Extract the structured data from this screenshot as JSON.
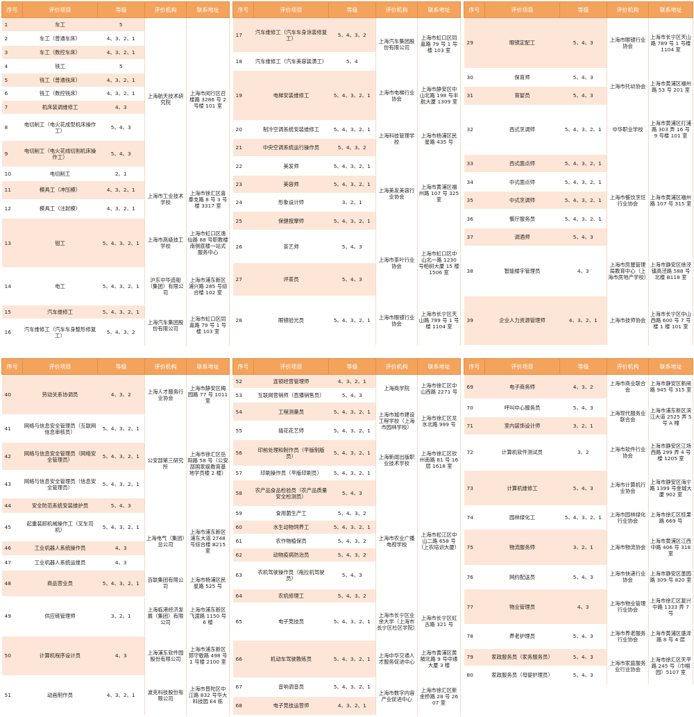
{
  "headers": [
    "序号",
    "评价项目",
    "等级",
    "评价机构",
    "联系地址"
  ],
  "panels": [
    {
      "rows": [
        {
          "no": "1",
          "item": "车工",
          "level": "5",
          "org": "上海航天技术研究院",
          "orgSpan": 10,
          "addr": "上海市闵行区召楼路 3286 号 2 号楼 101 室",
          "addrSpan": 10
        },
        {
          "no": "2",
          "item": "车工（普通车床）",
          "level": "4、3、2、1"
        },
        {
          "no": "3",
          "item": "车工（数控车床）",
          "level": "4、3、2、1"
        },
        {
          "no": "4",
          "item": "铣工",
          "level": "5"
        },
        {
          "no": "5",
          "item": "铣工（普通铣床）",
          "level": "4、3、2、1"
        },
        {
          "no": "6",
          "item": "铣工（数控铣床）",
          "level": "4、3、2、1"
        },
        {
          "no": "7",
          "item": "机床装调维修工",
          "level": "4、3"
        },
        {
          "no": "8",
          "item": "电切削工（电火花成型机床操作工）",
          "level": "5、4、3"
        },
        {
          "no": "9",
          "item": "电切削工（电火花线切割机床操作工）",
          "level": "5、4、3"
        },
        {
          "no": "10",
          "item": "电切削工",
          "level": "2、1"
        },
        {
          "no": "11",
          "item": "模具工（冲压模）",
          "level": "4、3、2、1",
          "org": "上海市工业技术学校",
          "orgSpan": 2,
          "addr": "上海市徐汇区喜泰支路 8 号 3 号楼 3317 室",
          "addrSpan": 2
        },
        {
          "no": "12",
          "item": "模具工（注射模）",
          "level": "4、3、2、1"
        },
        {
          "no": "13",
          "item": "钳工",
          "level": "5、4、3、2、1",
          "org": "上海市高级技工学校",
          "orgSpan": 1,
          "addr": "上海市虹口区逸仙路 88 号职教楼南侧底楼一站式服务中心",
          "addrSpan": 1
        },
        {
          "no": "14",
          "item": "电工",
          "level": "5、4、3、2、1",
          "org": "沪东中华造船（集团）有限公司",
          "orgSpan": 1,
          "addr": "上海市浦东新区浦兴路 285 号综合楼 102 室",
          "addrSpan": 1
        },
        {
          "no": "15",
          "item": "汽车维修工",
          "level": "5、4、3、2、1",
          "org": "上海汽车集团股份有限公司",
          "orgSpan": 2,
          "addr": "上海市虹口区同嘉路 79 号 1 号楼 103 室",
          "addrSpan": 2
        },
        {
          "no": "16",
          "item": "汽车维修工（汽车车身整形修复工）",
          "level": "5、4、3、2"
        }
      ]
    },
    {
      "rows": [
        {
          "no": "17",
          "item": "汽车维修工（汽车车身涂装修复工）",
          "level": "5、4、3、2",
          "org": "上海汽车集团股份有限公司",
          "orgSpan": 2,
          "addr": "上海市虹口区同嘉路 79 号 1 号楼 103 室",
          "addrSpan": 2
        },
        {
          "no": "18",
          "item": "汽车维修工（汽车美容装潢工）",
          "level": "5、4"
        },
        {
          "no": "19",
          "item": "电梯安装维修工",
          "level": "5、4、3、2、1",
          "org": "上海市电梯行业协会",
          "orgSpan": 1,
          "addr": "上海市静安区中山北路 198 号半航大厦 1309 室",
          "addrSpan": 1
        },
        {
          "no": "20",
          "item": "制冷空调系统安装维修工",
          "level": "5、4、3、2、1",
          "org": "上海科技管理学校",
          "orgSpan": 2,
          "addr": "上海市杨浦区民星路 435 号",
          "addrSpan": 2
        },
        {
          "no": "21",
          "item": "中央空调系统运行操作员",
          "level": "5、4、3、2"
        },
        {
          "no": "22",
          "item": "美发师",
          "level": "5、4、3、2、1",
          "org": "上海美发美容行业协会",
          "orgSpan": 4,
          "addr": "上海市黄浦区福州路 107 号 325 室",
          "addrSpan": 4
        },
        {
          "no": "23",
          "item": "美容师",
          "level": "5、4、3、2、1"
        },
        {
          "no": "24",
          "item": "形象设计师",
          "level": "3、2、1"
        },
        {
          "no": "25",
          "item": "保健按摩师",
          "level": "5、4、3、2、1"
        },
        {
          "no": "26",
          "item": "茶艺师",
          "level": "5、4、3",
          "org": "上海市茶叶行业协会",
          "orgSpan": 2,
          "addr": "上海市虹口区中山北一路 1230 号柏树大厦 15 楼 1506 室",
          "addrSpan": 2
        },
        {
          "no": "27",
          "item": "评茶员",
          "level": "5、4、3"
        },
        {
          "no": "28",
          "item": "眼镜验光员",
          "level": "5、4、3、2、1",
          "org": "上海市眼镜行业协会",
          "orgSpan": 1,
          "addr": "上海市长宁区天山路 789 号 1 号楼 1104 室",
          "addrSpan": 1
        }
      ]
    },
    {
      "rows": [
        {
          "no": "29",
          "item": "眼镜定配工",
          "level": "5、4、3",
          "org": "上海市眼镜行业协会",
          "orgSpan": 1,
          "addr": "上海市长宁区天山路 789 号 1 号楼 1104 室",
          "addrSpan": 1
        },
        {
          "no": "30",
          "item": "保育师",
          "level": "5、4、3",
          "org": "上海市托幼协会",
          "orgSpan": 2,
          "addr": "上海市黄浦区福州路 53 号 201 室",
          "addrSpan": 2
        },
        {
          "no": "31",
          "item": "育婴员",
          "level": "5、4、3"
        },
        {
          "no": "32",
          "item": "西式烹调师",
          "level": "5、4、3、2、1",
          "org": "中华职业学校",
          "orgSpan": 1,
          "addr": "上海市黄浦区打浦路 303 弄 16 号 9 号楼 101 室",
          "addrSpan": 1
        },
        {
          "no": "33",
          "item": "西式面点师",
          "level": "5、4、3、2、1",
          "org": "上海市餐饮烹饪行业协会",
          "orgSpan": 5,
          "addr": "上海市黄浦区福州路 107 号 315 室",
          "addrSpan": 5
        },
        {
          "no": "34",
          "item": "中式面点师",
          "level": "5、4、3、2、1"
        },
        {
          "no": "35",
          "item": "中式烹调师",
          "level": "5、4、3、2、1"
        },
        {
          "no": "36",
          "item": "餐厅服务员",
          "level": "5、4、3、2、1"
        },
        {
          "no": "37",
          "item": "调酒师",
          "level": "5、4、3"
        },
        {
          "no": "38",
          "item": "智能楼宇管理员",
          "level": "4、3",
          "org": "上海市房屋管理局教育中心（上海市房地产学校）",
          "orgSpan": 1,
          "addr": "上海市静安区徐泾镇高泾路 588 号北楼 B118 室",
          "addrSpan": 1
        },
        {
          "no": "39",
          "item": "企业人力资源管理师",
          "level": "4、3、2、1",
          "org": "上海市技师协会",
          "orgSpan": 1,
          "addr": "上海市长宁区中山西路 600 号 7 号楼 1 楼 101 室",
          "addrSpan": 1
        }
      ]
    },
    {
      "rows": [
        {
          "no": "40",
          "item": "劳动关系协调员",
          "level": "4、3、2",
          "org": "上海人才服务行业协会",
          "orgSpan": 1,
          "addr": "上海市静安区梅园路 77 号 1011 室",
          "addrSpan": 1
        },
        {
          "no": "41",
          "item": "网络与信息安全管理员（互联网信息审核员）",
          "level": "5、4、3、2、1",
          "org": "公安部第三研究所",
          "orgSpan": 4,
          "addr": "上海市徐汇区岳阳路 58 号（公安部国家级教育基地学员楼 2 楼）",
          "addrSpan": 4
        },
        {
          "no": "42",
          "item": "网络与信息安全管理员（网络安全管理员）",
          "level": "5、4、3、2、1"
        },
        {
          "no": "43",
          "item": "网络与信息安全管理员（信息安全管理员）",
          "level": "5、4、3、2、1"
        },
        {
          "no": "44",
          "item": "安全防范系统安装维护员",
          "level": "5、4、3"
        },
        {
          "no": "45",
          "item": "起重装卸机械操作工（叉车司机）",
          "level": "5、4、3、2、1",
          "org": "上海电气（集团）总公司",
          "orgSpan": 3,
          "addr": "上海市浦东新区浦东大道 2748 号综合楼 B215 室",
          "addrSpan": 3
        },
        {
          "no": "46",
          "item": "工业机器人系统操作员",
          "level": "4、3"
        },
        {
          "no": "47",
          "item": "工业机器人系统运维员",
          "level": "4、3"
        },
        {
          "no": "48",
          "item": "商品营业员",
          "level": "5、4、3、2、1",
          "org": "百联集团有限公司",
          "orgSpan": 1,
          "addr": "上海市杨浦区民星路 525 号",
          "addrSpan": 1
        },
        {
          "no": "49",
          "item": "供应链管理师",
          "level": "3、2、1",
          "org": "上海临港经济发展（集团）有限公司",
          "orgSpan": 1,
          "addr": "上海市浦东新区飞渡路 1150 号 6 楼",
          "addrSpan": 1
        },
        {
          "no": "50",
          "item": "计算机程序设计员",
          "level": "4、3",
          "org": "上海浦东软件园股份有限公司",
          "orgSpan": 1,
          "addr": "上海市浦东新区郭守敬路 498 号 1 号楼 2100 室",
          "addrSpan": 1
        },
        {
          "no": "51",
          "item": "动画制作员",
          "level": "4、3、2、1",
          "org": "波克科技股份有限公司",
          "orgSpan": 1,
          "addr": "上海市普陀区中江路 832 号华大科技园 E4 栋",
          "addrSpan": 1
        }
      ]
    },
    {
      "rows": [
        {
          "no": "52",
          "item": "连锁经营管理师",
          "level": "4、3、2、1",
          "org": "上海商学院",
          "orgSpan": 2,
          "addr": "上海市徐汇区中山西路 2271 号",
          "addrSpan": 2
        },
        {
          "no": "53",
          "item": "互联网营销师（直播销售员）",
          "level": "5、4、3"
        },
        {
          "no": "54",
          "item": "工程测量员",
          "level": "5、4、3、2、1",
          "org": "上海市城市建设工程学校（上海市园林学校）",
          "orgSpan": 2,
          "addr": "上海市徐汇区龙水北路 999 号",
          "addrSpan": 2
        },
        {
          "no": "55",
          "item": "插花花艺师",
          "level": "5、4、3、2、1"
        },
        {
          "no": "56",
          "item": "印前处理和制作员（平版制版员）",
          "level": "5、4、3、2、1",
          "org": "上海新闻出版职业技术学校",
          "orgSpan": 2,
          "addr": "上海市徐汇区钦州南路 81 号 16 层 1618 室",
          "addrSpan": 2
        },
        {
          "no": "57",
          "item": "印刷操作员（平版印刷员）",
          "level": "5、4、3、2、1"
        },
        {
          "no": "58",
          "item": "农产品食品检验员（农产品质量安全检测员）",
          "level": "5、4、3",
          "org": "上海市农业广播电视学校",
          "orgSpan": 7,
          "addr": "上海市松江区中山二路 658 号（上农培训大厦）",
          "addrSpan": 7
        },
        {
          "no": "59",
          "item": "食用菌生产工",
          "level": "5、4、3、2"
        },
        {
          "no": "60",
          "item": "水生动物饲养工",
          "level": "5、4、3、2、1"
        },
        {
          "no": "61",
          "item": "农作物植保员",
          "level": "5、4、3、2"
        },
        {
          "no": "62",
          "item": "动物疫病防治员",
          "level": "5、4、3、2"
        },
        {
          "no": "63",
          "item": "农机驾驶操作员（拖拉机驾驶员）",
          "level": "5、4、3"
        },
        {
          "no": "64",
          "item": "农机修理工",
          "level": "5、4、3、2"
        },
        {
          "no": "65",
          "item": "电子竞技员",
          "level": "5、4、3、2、1",
          "org": "上海市长宁区业余大学（上海市长宁区社区学院）",
          "orgSpan": 1,
          "addr": "上海市长宁区虹古路 321 号",
          "addrSpan": 1
        },
        {
          "no": "66",
          "item": "机动车驾驶教练员",
          "level": "5、4、3、2、1",
          "org": "上海中华交通人才服务促进中心",
          "orgSpan": 1,
          "addr": "上海市黄浦区黄陂北路 9 号中通大厦 3 楼",
          "addrSpan": 1
        },
        {
          "no": "67",
          "item": "音响调音员",
          "level": "5、4、3、2、1",
          "org": "上海市数字内容产业促进中心",
          "orgSpan": 2,
          "addr": "上海市徐汇区新金桥路 28 号 2607 室",
          "addrSpan": 2
        },
        {
          "no": "68",
          "item": "电子竞技运营师",
          "level": "4、3、2、1"
        }
      ]
    },
    {
      "rows": [
        {
          "no": "69",
          "item": "电子商务师",
          "level": "4、3、2",
          "org": "上海市商业联合会",
          "orgSpan": 1,
          "addr": "上海市静安区新闸路 945 号 315 室",
          "addrSpan": 1
        },
        {
          "no": "70",
          "item": "呼叫中心服务员",
          "level": "5、4、3",
          "org": "上海现代服务业联合会",
          "orgSpan": 2,
          "addr": "上海市浦东新区滨江大道 2525 弄 5 号 A 幢",
          "addrSpan": 2
        },
        {
          "no": "71",
          "item": "室内装饰设计师",
          "level": "3、2、1"
        },
        {
          "no": "72",
          "item": "计算机软件测试员",
          "level": "3、2",
          "org": "上海市软件行业协会",
          "orgSpan": 1,
          "addr": "上海市静安区江场西路 299 弄 4 号楼 1205 室",
          "addrSpan": 1
        },
        {
          "no": "73",
          "item": "计算机维修工",
          "level": "5、4、3",
          "org": "上海市计算机行业协会",
          "orgSpan": 1,
          "addr": "上海市静安区海宁路 1399 号金城大厦 902 室",
          "addrSpan": 1
        },
        {
          "no": "74",
          "item": "园林绿化工",
          "level": "5、4、3、2、1",
          "org": "上海市园林绿化行业协会",
          "orgSpan": 1,
          "addr": "上海市徐汇区桂果路 669 号",
          "addrSpan": 1
        },
        {
          "no": "75",
          "item": "物流服务师",
          "level": "3、2、1",
          "org": "上海市物流协会",
          "orgSpan": 1,
          "addr": "上海市黄浦区江西中路 406 号 318 室",
          "addrSpan": 1
        },
        {
          "no": "76",
          "item": "网约配送员",
          "level": "5、4、3",
          "org": "上海市快递行业协会",
          "orgSpan": 1,
          "addr": "上海市静安区墨园路 309 号 820 室",
          "addrSpan": 1
        },
        {
          "no": "77",
          "item": "物业管理员",
          "level": "4、3",
          "org": "上海市物业管理行业协会",
          "orgSpan": 1,
          "addr": "上海市徐汇区复兴中路 1333 弄 7 号",
          "addrSpan": 1
        },
        {
          "no": "78",
          "item": "养老护理员",
          "level": "5、4、3",
          "org": "上海市养老服务行业协会",
          "orgSpan": 1,
          "addr": "上海市黄浦区盛泽路 8 号 4 层",
          "addrSpan": 1
        },
        {
          "no": "79",
          "item": "家政服务员（家务服务员）",
          "level": "5、4、3",
          "org": "上海市家庭服务业行业协会",
          "orgSpan": 2,
          "addr": "上海市徐汇区天平路 245 号（巾帼园）5107 室",
          "addrSpan": 2
        },
        {
          "no": "80",
          "item": "家政服务员（母婴护理员）",
          "level": "5、4、3"
        }
      ]
    }
  ]
}
